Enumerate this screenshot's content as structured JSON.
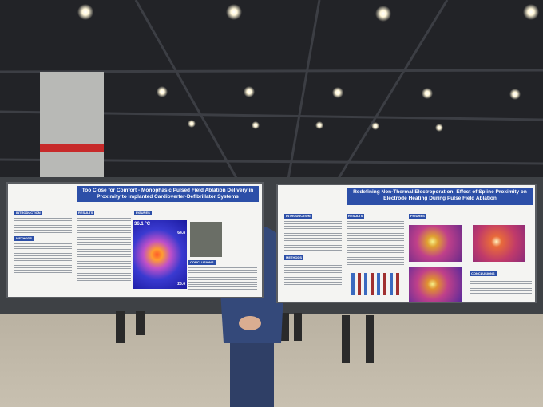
{
  "posters": [
    {
      "title": "Too Close for Comfort - Monophasic Pulsed Field Ablation Delivery in Proximity to Implanted Cardioverter-Defibrillator Systems",
      "sections": [
        "INTRODUCTION",
        "RESULTS",
        "FIGURES",
        "METHODS",
        "CONCLUSIONS"
      ],
      "thermal": {
        "temperature": "36.1 °C",
        "scale_max": "64.8",
        "scale_min": "25.6"
      }
    },
    {
      "title": "Redefining Non-Thermal Electroporation: Effect of Spline Proximity on Electrode Heating During Pulse Field Ablation",
      "sections": [
        "INTRODUCTION",
        "RESULTS",
        "FIGURES",
        "METHODS",
        "CONCLUSIONS"
      ]
    }
  ]
}
